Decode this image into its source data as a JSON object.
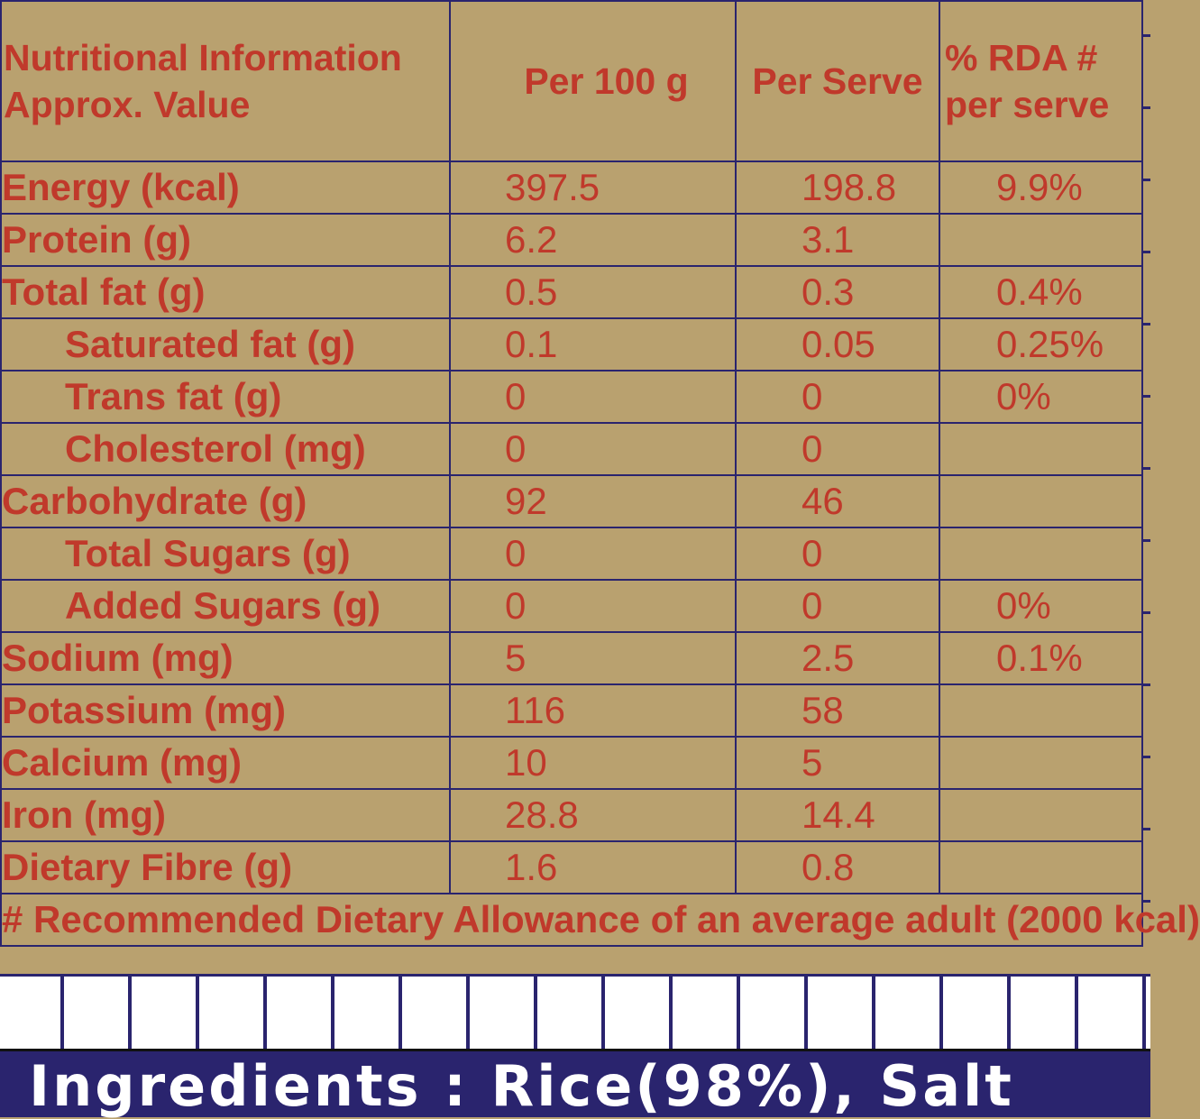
{
  "table": {
    "header": {
      "name": "Nutritional Information Approx. Value",
      "per100": "Per 100 g",
      "perServe": "Per Serve",
      "rda": "% RDA # per serve"
    },
    "rows": [
      {
        "name": "Energy (kcal)",
        "per100": "397.5",
        "perServe": "198.8",
        "rda": "9.9%",
        "indent": false
      },
      {
        "name": "Protein (g)",
        "per100": "6.2",
        "perServe": "3.1",
        "rda": "",
        "indent": false
      },
      {
        "name": "Total fat (g)",
        "per100": "0.5",
        "perServe": "0.3",
        "rda": "0.4%",
        "indent": false
      },
      {
        "name": "Saturated fat (g)",
        "per100": "0.1",
        "perServe": "0.05",
        "rda": "0.25%",
        "indent": true
      },
      {
        "name": "Trans fat (g)",
        "per100": "0",
        "perServe": "0",
        "rda": "0%",
        "indent": true
      },
      {
        "name": "Cholesterol (mg)",
        "per100": "0",
        "perServe": "0",
        "rda": "",
        "indent": true
      },
      {
        "name": "Carbohydrate (g)",
        "per100": "92",
        "perServe": "46",
        "rda": "",
        "indent": false
      },
      {
        "name": "Total Sugars (g)",
        "per100": "0",
        "perServe": "0",
        "rda": "",
        "indent": true
      },
      {
        "name": "Added Sugars (g)",
        "per100": "0",
        "perServe": "0",
        "rda": "0%",
        "indent": true
      },
      {
        "name": "Sodium (mg)",
        "per100": "5",
        "perServe": "2.5",
        "rda": "0.1%",
        "indent": false
      },
      {
        "name": "Potassium (mg)",
        "per100": "116",
        "perServe": "58",
        "rda": "",
        "indent": false
      },
      {
        "name": "Calcium (mg)",
        "per100": "10",
        "perServe": "5",
        "rda": "",
        "indent": false
      },
      {
        "name": "Iron (mg)",
        "per100": "28.8",
        "perServe": "14.4",
        "rda": "",
        "indent": false
      },
      {
        "name": "Dietary Fibre (g)",
        "per100": "1.6",
        "perServe": "0.8",
        "rda": "",
        "indent": false
      }
    ],
    "footnote": "# Recommended Dietary Allowance of an average adult (2000 kcal)"
  },
  "ingredients": "Ingredients : Rice(98%), Salt",
  "colors": {
    "background": "#b9a16f",
    "text": "#c0392b",
    "lines": "#2a246e",
    "bar": "#2a246e",
    "bar_text": "#ffffff"
  }
}
